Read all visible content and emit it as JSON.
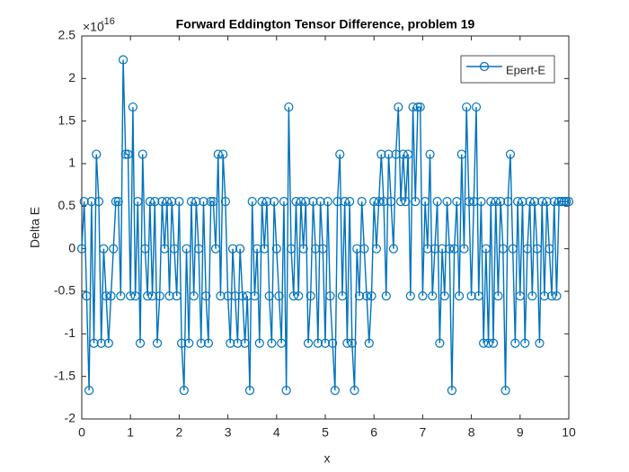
{
  "chart_data": {
    "type": "line",
    "title": "Forward Eddington Tensor Difference, problem 19",
    "x_label": "x",
    "y_label": "Delta E",
    "y_multiplier": {
      "base": "×10",
      "exponent": "-16"
    },
    "xlim": [
      0,
      10
    ],
    "xticks": [
      0,
      1,
      2,
      3,
      4,
      5,
      6,
      7,
      8,
      9,
      10
    ],
    "ylim": [
      -2,
      2.5
    ],
    "yticks": [
      -2,
      -1.5,
      -1,
      -0.5,
      0,
      0.5,
      1,
      1.5,
      2,
      2.5
    ],
    "legend": "upper right",
    "box": true,
    "x": [
      0,
      0.05,
      0.1,
      0.15,
      0.2,
      0.25,
      0.3,
      0.35,
      0.4,
      0.45,
      0.5,
      0.55,
      0.6,
      0.65,
      0.7,
      0.75,
      0.8,
      0.85,
      0.9,
      0.95,
      1,
      1.05,
      1.1,
      1.15,
      1.2,
      1.25,
      1.3,
      1.35,
      1.4,
      1.45,
      1.5,
      1.55,
      1.6,
      1.65,
      1.7,
      1.75,
      1.8,
      1.85,
      1.9,
      1.95,
      2,
      2.05,
      2.1,
      2.15,
      2.2,
      2.25,
      2.3,
      2.35,
      2.4,
      2.45,
      2.5,
      2.55,
      2.6,
      2.65,
      2.7,
      2.75,
      2.8,
      2.85,
      2.9,
      2.95,
      3,
      3.05,
      3.1,
      3.15,
      3.2,
      3.25,
      3.3,
      3.35,
      3.4,
      3.45,
      3.5,
      3.55,
      3.6,
      3.65,
      3.7,
      3.75,
      3.8,
      3.85,
      3.9,
      3.95,
      4,
      4.05,
      4.1,
      4.15,
      4.2,
      4.25,
      4.3,
      4.35,
      4.4,
      4.45,
      4.5,
      4.55,
      4.6,
      4.65,
      4.7,
      4.75,
      4.8,
      4.85,
      4.9,
      4.95,
      5,
      5.05,
      5.1,
      5.15,
      5.2,
      5.25,
      5.3,
      5.35,
      5.4,
      5.45,
      5.5,
      5.55,
      5.6,
      5.65,
      5.7,
      5.75,
      5.8,
      5.85,
      5.9,
      5.95,
      6,
      6.05,
      6.1,
      6.15,
      6.2,
      6.25,
      6.3,
      6.35,
      6.4,
      6.45,
      6.5,
      6.55,
      6.6,
      6.65,
      6.7,
      6.75,
      6.8,
      6.85,
      6.9,
      6.95,
      7,
      7.05,
      7.1,
      7.15,
      7.2,
      7.25,
      7.3,
      7.35,
      7.4,
      7.45,
      7.5,
      7.55,
      7.6,
      7.65,
      7.7,
      7.75,
      7.8,
      7.85,
      7.9,
      7.95,
      8,
      8.05,
      8.1,
      8.15,
      8.2,
      8.25,
      8.3,
      8.35,
      8.4,
      8.45,
      8.5,
      8.55,
      8.6,
      8.65,
      8.7,
      8.75,
      8.8,
      8.85,
      8.9,
      8.95,
      9,
      9.05,
      9.1,
      9.15,
      9.2,
      9.25,
      9.3,
      9.35,
      9.4,
      9.45,
      9.5,
      9.55,
      9.6,
      9.65,
      9.7,
      9.75,
      9.8,
      9.85,
      9.9,
      9.95,
      10
    ],
    "series": [
      {
        "name": "Epert-E",
        "color": "#0072bd",
        "marker": "circle",
        "values": [
          0,
          0.555,
          -0.555,
          -1.665,
          0.555,
          -1.11,
          1.11,
          0.555,
          -1.11,
          0,
          -0.555,
          -1.11,
          -0.555,
          0,
          0.555,
          0.555,
          -0.555,
          2.22,
          1.11,
          1.11,
          -0.555,
          1.665,
          -0.555,
          0.555,
          -1.11,
          1.11,
          0,
          -0.555,
          0.555,
          -0.555,
          0.555,
          -1.11,
          -0.555,
          0.555,
          0,
          0.555,
          -0.555,
          0.555,
          0,
          -0.555,
          0.555,
          -1.11,
          -1.665,
          0,
          -1.11,
          0.555,
          -0.555,
          0.555,
          0,
          -1.11,
          0.555,
          -0.555,
          -1.11,
          0.555,
          0.555,
          0,
          1.11,
          -0.555,
          1.11,
          0.555,
          -0.555,
          -1.11,
          0,
          -0.555,
          -1.11,
          0,
          -0.555,
          -1.11,
          -0.555,
          -1.665,
          0.555,
          -0.555,
          0,
          -1.11,
          0.555,
          0,
          0.555,
          -0.555,
          -1.11,
          0.555,
          0,
          -0.555,
          -1.11,
          0.555,
          -1.665,
          1.665,
          0,
          -0.555,
          0.555,
          -0.555,
          0.555,
          0,
          0.555,
          -1.11,
          -0.555,
          0.555,
          0,
          -1.11,
          0.555,
          0,
          -1.11,
          0.555,
          -0.555,
          -1.11,
          -1.665,
          0.555,
          1.11,
          -0.555,
          0.555,
          -1.11,
          0.555,
          -1.11,
          -1.665,
          0,
          -0.555,
          0.555,
          0,
          -0.555,
          -1.11,
          -0.555,
          0.555,
          0,
          0.555,
          1.11,
          0.555,
          -0.555,
          1.11,
          0.555,
          0,
          1.11,
          1.665,
          0.555,
          1.11,
          0.555,
          1.11,
          -0.555,
          1.665,
          0.555,
          1.665,
          1.665,
          -0.555,
          0.555,
          0,
          1.11,
          -0.555,
          0,
          0.555,
          -1.11,
          0,
          -0.555,
          0.555,
          0,
          -1.665,
          0,
          0.555,
          -0.555,
          1.11,
          0,
          1.665,
          0.555,
          -0.555,
          0.555,
          1.665,
          -0.555,
          0.555,
          -1.11,
          0,
          -1.11,
          0.555,
          -1.11,
          0.555,
          -0.555,
          0.555,
          0,
          -1.665,
          0.555,
          1.11,
          0,
          -1.11,
          0.555,
          -0.555,
          0.555,
          -1.11,
          0,
          0.555,
          -0.555,
          0.555,
          0,
          -1.11,
          0.555,
          -0.555,
          0.555,
          0,
          -0.555,
          0.555,
          -0.555,
          0.555,
          0.555,
          0.555,
          0.555,
          0.555
        ]
      }
    ]
  }
}
